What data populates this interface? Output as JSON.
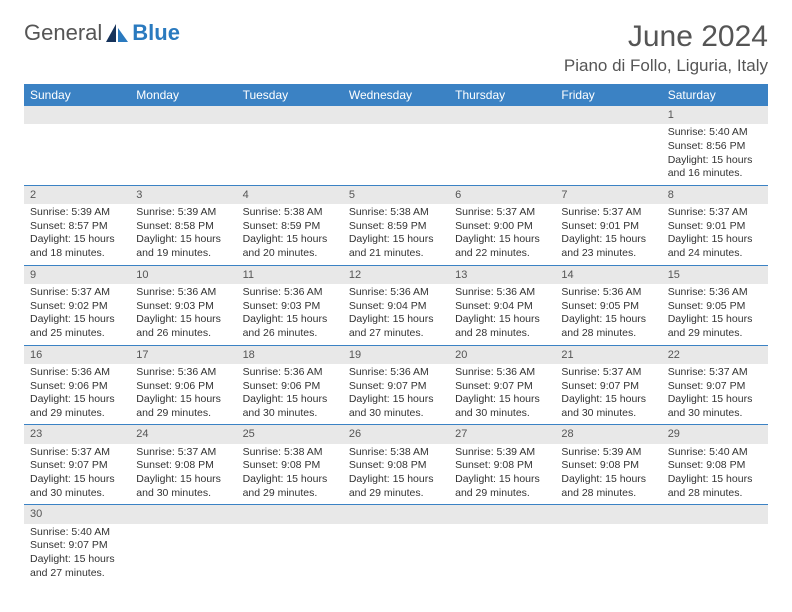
{
  "logo": {
    "text1": "General",
    "text2": "Blue"
  },
  "title": "June 2024",
  "location": "Piano di Follo, Liguria, Italy",
  "colors": {
    "header_bg": "#3b82c4",
    "header_text": "#ffffff",
    "daynum_bg": "#e8e8e8",
    "border": "#3b82c4",
    "logo_blue": "#2a7abf"
  },
  "weekdays": [
    "Sunday",
    "Monday",
    "Tuesday",
    "Wednesday",
    "Thursday",
    "Friday",
    "Saturday"
  ],
  "weeks": [
    [
      null,
      null,
      null,
      null,
      null,
      null,
      {
        "n": "1",
        "sr": "Sunrise: 5:40 AM",
        "ss": "Sunset: 8:56 PM",
        "d1": "Daylight: 15 hours",
        "d2": "and 16 minutes."
      }
    ],
    [
      {
        "n": "2",
        "sr": "Sunrise: 5:39 AM",
        "ss": "Sunset: 8:57 PM",
        "d1": "Daylight: 15 hours",
        "d2": "and 18 minutes."
      },
      {
        "n": "3",
        "sr": "Sunrise: 5:39 AM",
        "ss": "Sunset: 8:58 PM",
        "d1": "Daylight: 15 hours",
        "d2": "and 19 minutes."
      },
      {
        "n": "4",
        "sr": "Sunrise: 5:38 AM",
        "ss": "Sunset: 8:59 PM",
        "d1": "Daylight: 15 hours",
        "d2": "and 20 minutes."
      },
      {
        "n": "5",
        "sr": "Sunrise: 5:38 AM",
        "ss": "Sunset: 8:59 PM",
        "d1": "Daylight: 15 hours",
        "d2": "and 21 minutes."
      },
      {
        "n": "6",
        "sr": "Sunrise: 5:37 AM",
        "ss": "Sunset: 9:00 PM",
        "d1": "Daylight: 15 hours",
        "d2": "and 22 minutes."
      },
      {
        "n": "7",
        "sr": "Sunrise: 5:37 AM",
        "ss": "Sunset: 9:01 PM",
        "d1": "Daylight: 15 hours",
        "d2": "and 23 minutes."
      },
      {
        "n": "8",
        "sr": "Sunrise: 5:37 AM",
        "ss": "Sunset: 9:01 PM",
        "d1": "Daylight: 15 hours",
        "d2": "and 24 minutes."
      }
    ],
    [
      {
        "n": "9",
        "sr": "Sunrise: 5:37 AM",
        "ss": "Sunset: 9:02 PM",
        "d1": "Daylight: 15 hours",
        "d2": "and 25 minutes."
      },
      {
        "n": "10",
        "sr": "Sunrise: 5:36 AM",
        "ss": "Sunset: 9:03 PM",
        "d1": "Daylight: 15 hours",
        "d2": "and 26 minutes."
      },
      {
        "n": "11",
        "sr": "Sunrise: 5:36 AM",
        "ss": "Sunset: 9:03 PM",
        "d1": "Daylight: 15 hours",
        "d2": "and 26 minutes."
      },
      {
        "n": "12",
        "sr": "Sunrise: 5:36 AM",
        "ss": "Sunset: 9:04 PM",
        "d1": "Daylight: 15 hours",
        "d2": "and 27 minutes."
      },
      {
        "n": "13",
        "sr": "Sunrise: 5:36 AM",
        "ss": "Sunset: 9:04 PM",
        "d1": "Daylight: 15 hours",
        "d2": "and 28 minutes."
      },
      {
        "n": "14",
        "sr": "Sunrise: 5:36 AM",
        "ss": "Sunset: 9:05 PM",
        "d1": "Daylight: 15 hours",
        "d2": "and 28 minutes."
      },
      {
        "n": "15",
        "sr": "Sunrise: 5:36 AM",
        "ss": "Sunset: 9:05 PM",
        "d1": "Daylight: 15 hours",
        "d2": "and 29 minutes."
      }
    ],
    [
      {
        "n": "16",
        "sr": "Sunrise: 5:36 AM",
        "ss": "Sunset: 9:06 PM",
        "d1": "Daylight: 15 hours",
        "d2": "and 29 minutes."
      },
      {
        "n": "17",
        "sr": "Sunrise: 5:36 AM",
        "ss": "Sunset: 9:06 PM",
        "d1": "Daylight: 15 hours",
        "d2": "and 29 minutes."
      },
      {
        "n": "18",
        "sr": "Sunrise: 5:36 AM",
        "ss": "Sunset: 9:06 PM",
        "d1": "Daylight: 15 hours",
        "d2": "and 30 minutes."
      },
      {
        "n": "19",
        "sr": "Sunrise: 5:36 AM",
        "ss": "Sunset: 9:07 PM",
        "d1": "Daylight: 15 hours",
        "d2": "and 30 minutes."
      },
      {
        "n": "20",
        "sr": "Sunrise: 5:36 AM",
        "ss": "Sunset: 9:07 PM",
        "d1": "Daylight: 15 hours",
        "d2": "and 30 minutes."
      },
      {
        "n": "21",
        "sr": "Sunrise: 5:37 AM",
        "ss": "Sunset: 9:07 PM",
        "d1": "Daylight: 15 hours",
        "d2": "and 30 minutes."
      },
      {
        "n": "22",
        "sr": "Sunrise: 5:37 AM",
        "ss": "Sunset: 9:07 PM",
        "d1": "Daylight: 15 hours",
        "d2": "and 30 minutes."
      }
    ],
    [
      {
        "n": "23",
        "sr": "Sunrise: 5:37 AM",
        "ss": "Sunset: 9:07 PM",
        "d1": "Daylight: 15 hours",
        "d2": "and 30 minutes."
      },
      {
        "n": "24",
        "sr": "Sunrise: 5:37 AM",
        "ss": "Sunset: 9:08 PM",
        "d1": "Daylight: 15 hours",
        "d2": "and 30 minutes."
      },
      {
        "n": "25",
        "sr": "Sunrise: 5:38 AM",
        "ss": "Sunset: 9:08 PM",
        "d1": "Daylight: 15 hours",
        "d2": "and 29 minutes."
      },
      {
        "n": "26",
        "sr": "Sunrise: 5:38 AM",
        "ss": "Sunset: 9:08 PM",
        "d1": "Daylight: 15 hours",
        "d2": "and 29 minutes."
      },
      {
        "n": "27",
        "sr": "Sunrise: 5:39 AM",
        "ss": "Sunset: 9:08 PM",
        "d1": "Daylight: 15 hours",
        "d2": "and 29 minutes."
      },
      {
        "n": "28",
        "sr": "Sunrise: 5:39 AM",
        "ss": "Sunset: 9:08 PM",
        "d1": "Daylight: 15 hours",
        "d2": "and 28 minutes."
      },
      {
        "n": "29",
        "sr": "Sunrise: 5:40 AM",
        "ss": "Sunset: 9:08 PM",
        "d1": "Daylight: 15 hours",
        "d2": "and 28 minutes."
      }
    ],
    [
      {
        "n": "30",
        "sr": "Sunrise: 5:40 AM",
        "ss": "Sunset: 9:07 PM",
        "d1": "Daylight: 15 hours",
        "d2": "and 27 minutes."
      },
      null,
      null,
      null,
      null,
      null,
      null
    ]
  ]
}
